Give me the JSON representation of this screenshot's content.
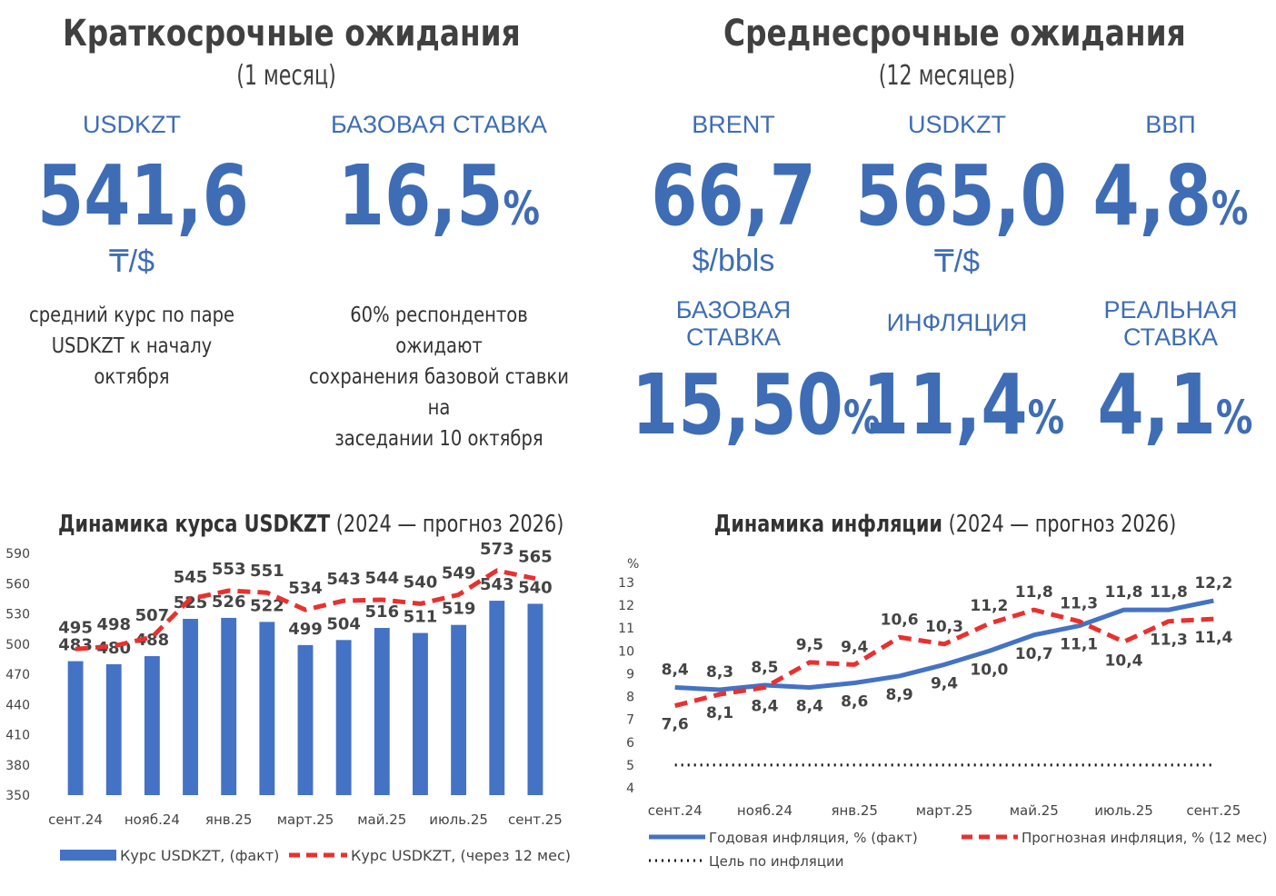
{
  "short": {
    "title": "Краткосрочные ожидания",
    "subtitle": "(1 месяц)",
    "usdkzt": {
      "label": "USDKZT",
      "value": "541,6",
      "unit": "₸/$",
      "note1": "средний курс по паре",
      "note2": "USDKZT к началу октября"
    },
    "rate": {
      "label": "БАЗОВАЯ СТАВКА",
      "value": "16,5",
      "pct": "%",
      "note1": "60% респондентов ожидают",
      "note2": "сохранения базовой ставки на",
      "note3": "заседании 10 октября"
    }
  },
  "medium": {
    "title": "Среднесрочные ожидания",
    "subtitle": "(12 месяцев)",
    "brent": {
      "label": "BRENT",
      "value": "66,7",
      "unit": "$/bbls"
    },
    "usdkzt": {
      "label": "USDKZT",
      "value": "565,0",
      "unit": "₸/$"
    },
    "gdp": {
      "label": "ВВП",
      "value": "4,8",
      "pct": "%"
    },
    "rate": {
      "label1": "БАЗОВАЯ",
      "label2": "СТАВКА",
      "value": "15,50",
      "pct": "%"
    },
    "inflation": {
      "label": "ИНФЛЯЦИЯ",
      "value": "11,4",
      "pct": "%"
    },
    "real_rate": {
      "label1": "РЕАЛЬНАЯ",
      "label2": "СТАВКА",
      "value": "4,1",
      "pct": "%"
    }
  },
  "colors": {
    "blue": "#3E6DB5",
    "bar": "#4472C4",
    "red": "#E8312F",
    "text": "#404040"
  },
  "chart_data": [
    {
      "type": "bar",
      "title_bold": "Динамика курса USDKZT",
      "title_rest": "(2024 — прогноз 2026)",
      "ylim": [
        350,
        590
      ],
      "yticks": [
        350,
        380,
        410,
        440,
        470,
        500,
        530,
        560,
        590
      ],
      "x_tick_labels": [
        "сент.24",
        "нояб.24",
        "янв.25",
        "март.25",
        "май.25",
        "июль.25",
        "сент.25"
      ],
      "series": [
        {
          "name": "Курс USDKZT, (факт)",
          "type": "bar",
          "values": [
            483,
            480,
            488,
            525,
            526,
            522,
            499,
            504,
            516,
            511,
            519,
            543,
            540
          ]
        },
        {
          "name": "Курс USDKZT, (через 12 мес)",
          "type": "line",
          "values": [
            495,
            498,
            507,
            545,
            553,
            551,
            534,
            543,
            544,
            540,
            549,
            573,
            565
          ]
        }
      ]
    },
    {
      "type": "line",
      "title_bold": "Динамика инфляции",
      "title_rest": "(2024 — прогноз 2026)",
      "ylabel": "%",
      "ylim": [
        4,
        13
      ],
      "yticks": [
        4,
        5,
        6,
        7,
        8,
        9,
        10,
        11,
        12,
        13
      ],
      "x_tick_labels": [
        "сент.24",
        "нояб.24",
        "янв.25",
        "март.25",
        "май.25",
        "июль.25",
        "сент.25"
      ],
      "series": [
        {
          "name": "Годовая инфляция, % (факт)",
          "values": [
            8.4,
            8.3,
            8.5,
            8.4,
            8.6,
            8.9,
            9.4,
            10.0,
            10.7,
            11.1,
            11.8,
            11.8,
            12.2
          ],
          "labels": [
            "8,4",
            "8,3",
            "8,5",
            "8,4",
            "8,6",
            "8,9",
            "9,4",
            "10,0",
            "10,7",
            "11,1",
            "11,8",
            "11,8",
            "12,2"
          ]
        },
        {
          "name": "Прогнозная инфляция, % (12 мес)",
          "values": [
            7.6,
            8.1,
            8.4,
            9.5,
            9.4,
            10.6,
            10.3,
            11.2,
            11.8,
            11.3,
            10.4,
            11.3,
            11.4
          ],
          "labels": [
            "7,6",
            "8,1",
            "8,4",
            "9,5",
            "9,4",
            "10,6",
            "10,3",
            "11,2",
            "11,8",
            "11,3",
            "10,4",
            "11,3",
            "11,4"
          ]
        },
        {
          "name": "Цель по инфляции",
          "values": [
            5,
            5,
            5,
            5,
            5,
            5,
            5,
            5,
            5,
            5,
            5,
            5,
            5
          ]
        }
      ]
    }
  ]
}
